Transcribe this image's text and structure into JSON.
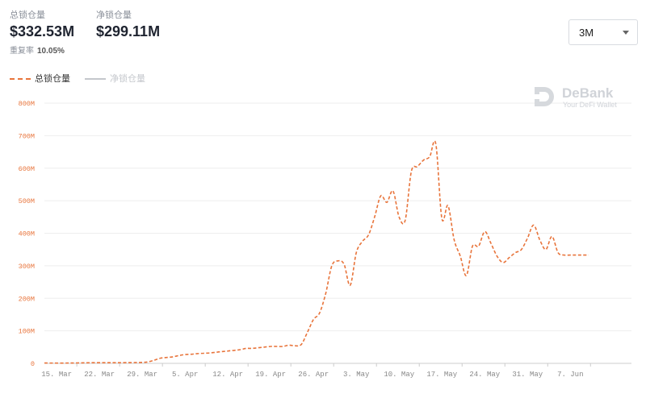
{
  "stats": {
    "tvl_label": "总锁仓量",
    "tvl_value": "$332.53M",
    "net_label": "净锁仓量",
    "net_value": "$299.11M",
    "repeat_label": "重复率",
    "repeat_value": "10.05%"
  },
  "period_select": {
    "value": "3M"
  },
  "watermark": {
    "name": "DeBank",
    "tagline": "Your DeFi Wallet"
  },
  "colors": {
    "accent": "#e8743b",
    "muted": "#c4c7cc",
    "grid": "#eeeeee",
    "axis_text": "#999999"
  },
  "chart_data": {
    "type": "line",
    "title": "",
    "xlabel": "",
    "ylabel": "",
    "ylim": [
      0,
      800
    ],
    "y_unit": "M",
    "yticks": [
      "0",
      "100M",
      "200M",
      "300M",
      "400M",
      "500M",
      "600M",
      "700M",
      "800M"
    ],
    "x_range": [
      0,
      96
    ],
    "xticks": [
      {
        "day": 2,
        "label": "15. Mar"
      },
      {
        "day": 9,
        "label": "22. Mar"
      },
      {
        "day": 16,
        "label": "29. Mar"
      },
      {
        "day": 23,
        "label": "5. Apr"
      },
      {
        "day": 30,
        "label": "12. Apr"
      },
      {
        "day": 37,
        "label": "19. Apr"
      },
      {
        "day": 44,
        "label": "26. Apr"
      },
      {
        "day": 51,
        "label": "3. May"
      },
      {
        "day": 58,
        "label": "10. May"
      },
      {
        "day": 65,
        "label": "17. May"
      },
      {
        "day": 72,
        "label": "24. May"
      },
      {
        "day": 79,
        "label": "31. May"
      },
      {
        "day": 86,
        "label": "7. Jun"
      }
    ],
    "legend": {
      "position": "top-left"
    },
    "grid": true,
    "series": [
      {
        "name": "总锁仓量",
        "style": "dashed",
        "visible": true,
        "x": [
          0,
          4,
          8,
          12,
          16,
          17,
          18,
          19,
          20,
          21,
          22,
          23,
          24,
          25,
          26,
          27,
          28,
          29,
          30,
          31,
          32,
          33,
          34,
          35,
          36,
          37,
          38,
          39,
          40,
          41,
          42,
          43,
          44,
          45,
          46,
          47,
          48,
          49,
          50,
          51,
          52,
          53,
          54,
          55,
          56,
          57,
          58,
          59,
          60,
          61,
          62,
          63,
          64,
          65,
          66,
          67,
          68,
          69,
          70,
          71,
          72,
          73,
          74,
          75,
          76,
          77,
          78,
          79,
          80,
          81,
          82,
          83,
          84,
          85,
          86,
          87,
          88,
          89
        ],
        "values": [
          1,
          1,
          2,
          2,
          3,
          5,
          10,
          16,
          18,
          20,
          24,
          27,
          28,
          30,
          31,
          32,
          34,
          36,
          38,
          40,
          42,
          46,
          46,
          48,
          50,
          52,
          52,
          52,
          56,
          54,
          58,
          95,
          135,
          155,
          215,
          300,
          315,
          305,
          240,
          340,
          375,
          395,
          450,
          515,
          495,
          530,
          450,
          440,
          590,
          605,
          625,
          635,
          675,
          445,
          485,
          380,
          330,
          270,
          360,
          360,
          405,
          370,
          330,
          310,
          325,
          340,
          350,
          385,
          425,
          380,
          350,
          390,
          340,
          333,
          333,
          333,
          333,
          333
        ]
      },
      {
        "name": "净锁仓量",
        "style": "solid",
        "visible": false,
        "values": []
      }
    ]
  }
}
